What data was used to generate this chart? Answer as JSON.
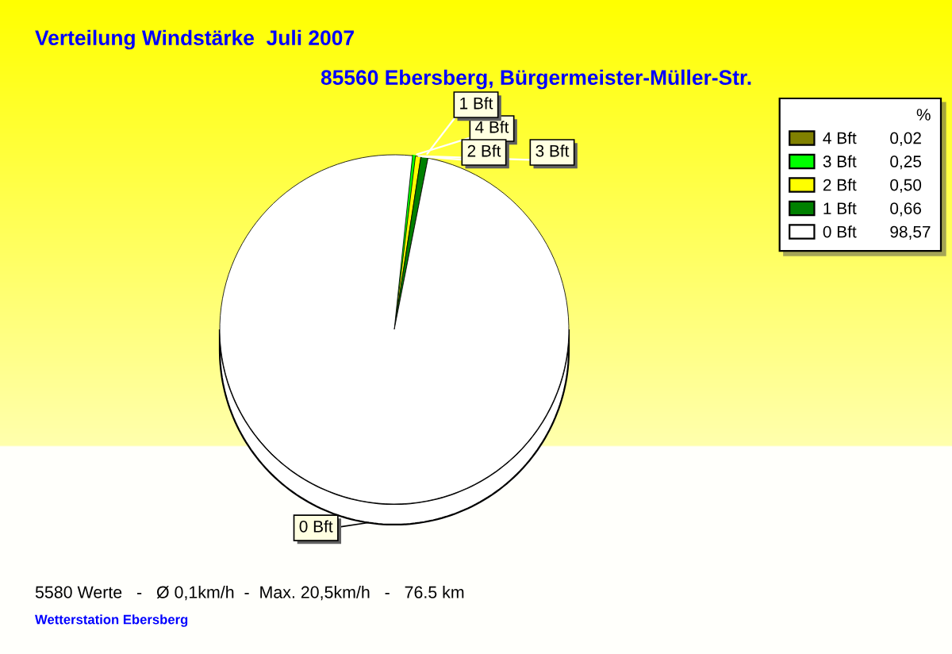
{
  "chart_data": {
    "type": "pie",
    "title": "Verteilung Windstärke  Juli 2007",
    "subtitle": "85560 Ebersberg, Bürgermeister-Müller-Str.",
    "categories": [
      "4 Bft",
      "3 Bft",
      "2 Bft",
      "1 Bft",
      "0 Bft"
    ],
    "values": [
      0.02,
      0.25,
      0.5,
      0.66,
      98.57
    ],
    "colors": [
      "#808000",
      "#00ff00",
      "#ffff00",
      "#008000",
      "#ffffff"
    ],
    "value_labels": [
      "0,02",
      "0,25",
      "0,50",
      "0,66",
      "98,57"
    ],
    "legend_title": "%",
    "legend": "top right",
    "annotations": [
      "5580 Werte   -   Ø 0,1km/h  -  Max. 20,5km/h   -   76.5 km",
      "Wetterstation Ebersberg"
    ]
  }
}
